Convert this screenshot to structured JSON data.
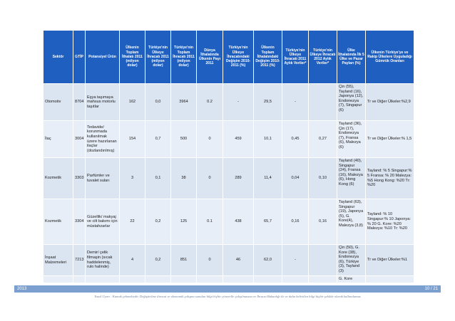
{
  "headers": [
    "Sektör",
    "GTİP",
    "Potansiyel Ürün",
    "Ülkenin Toplam İthalatı 2011 (milyon dolar)",
    "Türkiye'nin Ülkeye İhracatı 2011 (milyon dolar)",
    "Türkiye'nin Toplam İhracatı 2011 (milyon dolar)",
    "Dünya İthalatında Ülkenin Payı 2011",
    "Türkiye'nin Ülkeye İhracatındaki Değişim 2010-2011 (%)",
    "Ülkenin Toplam İthalatındaki Değişim 2010-2011 (%)",
    "Türkiye'nin Ülkeye İhracatı 2011 Aylık Veriler*",
    "Türkiye'nin Ülkeye İhracatı 2012 Aylık Veriler*",
    "Ülke İthalatında İlk 5 Ülke ve Pazar Payları (%)",
    "Ülkenin Türkiye'ye ve Rakip Ülkelere Uyguladığı Gümrük Oranları"
  ],
  "rows": [
    {
      "sector": "Otomotiv",
      "gtip": "8704",
      "product": "Eşya taşımaya mahsus motorlu taşıtlar",
      "import_total": "162",
      "tr_export_country": "0,0",
      "tr_export_total": "3964",
      "world_share": "0.2",
      "tr_change": "-",
      "import_change": "29,5",
      "monthly_2011": "-",
      "monthly_2012": "",
      "top5": "Çin (55), Tayland (16), Japonya (12), Endonezya (7), Singapur (6)",
      "tariffs": "Tr ve Diğer Ülkeler:%2,9"
    },
    {
      "sector": "İlaç",
      "gtip": "3004",
      "product": "Tedavide/ korunmada kullanılmak üzere hazırlanan ilaçlar (dozlandırılmış)",
      "import_total": "154",
      "tr_export_country": "0,7",
      "tr_export_total": "500",
      "world_share": "0",
      "tr_change": "459",
      "import_change": "10,1",
      "monthly_2011": "0,45",
      "monthly_2012": "0,27",
      "top5": "Tayland (36), Çin (17), Endonezya (7), Fransa (6), Malezya (6)",
      "tariffs": "Tr ve Diğer Ülkeler:% 1,5"
    },
    {
      "sector": "Kozmetik",
      "gtip": "3303",
      "product": "Parfümler ve tuvalet suları",
      "import_total": "3",
      "tr_export_country": "0,1",
      "tr_export_total": "38",
      "world_share": "0",
      "tr_change": "289",
      "import_change": "11,4",
      "monthly_2011": "0,04",
      "monthly_2012": "0,10",
      "top5": "Tayland (40), Singapur (24), Fransa (16), Malezya (6), Hong Kong (6)",
      "tariffs": "Tayland: % 5 Singapur:% 5 Fransa: % 20 Malezya: %5 Hong Kong: %20 Tr: %20"
    },
    {
      "sector": "Kozmetik",
      "gtip": "3304",
      "product": "Güzellik/ makyaj ve cilt bakımı için müstahzarlar",
      "import_total": "22",
      "tr_export_country": "0,2",
      "tr_export_total": "125",
      "world_share": "0.1",
      "tr_change": "438",
      "import_change": "65,7",
      "monthly_2011": "0,16",
      "monthly_2012": "0,16",
      "top5": "Tayland (63), Singapur (19), Japonya (5), G. Kore(4), Malezya (3,8)",
      "tariffs": "Tayland: % 10 Singapur:% 10 Japonya: % 20 G. Kore: %20 Malezya: %10 Tr: %20"
    },
    {
      "sector": "İnşaat Malzemeleri",
      "gtip": "7213",
      "product": "Demir/ çelik filmaşin (sıcak haddelenmiş, rulo halinde)",
      "import_total": "4",
      "tr_export_country": "0,2",
      "tr_export_total": "851",
      "world_share": "0",
      "tr_change": "46",
      "import_change": "62,0",
      "monthly_2011": "-",
      "monthly_2012": "",
      "top5": "Çin (50), G. Kore (38), Endonezya (6), Türkiye (3), Tayland (3)",
      "tariffs": "Tr ve Diğer Ülkeler:%1"
    }
  ],
  "partial_row": {
    "top5": "G. Kore"
  },
  "footer": {
    "year": "2013",
    "page": "10 / 21",
    "note": "Yasal Uyarı : Kamuk çekmektedir. Değiştirilme ihracat ve ekonomik çalışma sunulan bilgi hiçbir yönerelle çalışılmasına ve İhracat Bakanlığı ile ve daha belirtilen bilgi hiçbir şekilde olarak kullanılamaz"
  },
  "colors": {
    "header_bg": "#1f5fbf",
    "cell_bg": "#dbe4f1",
    "footer_bar": "#7ba0d0"
  }
}
